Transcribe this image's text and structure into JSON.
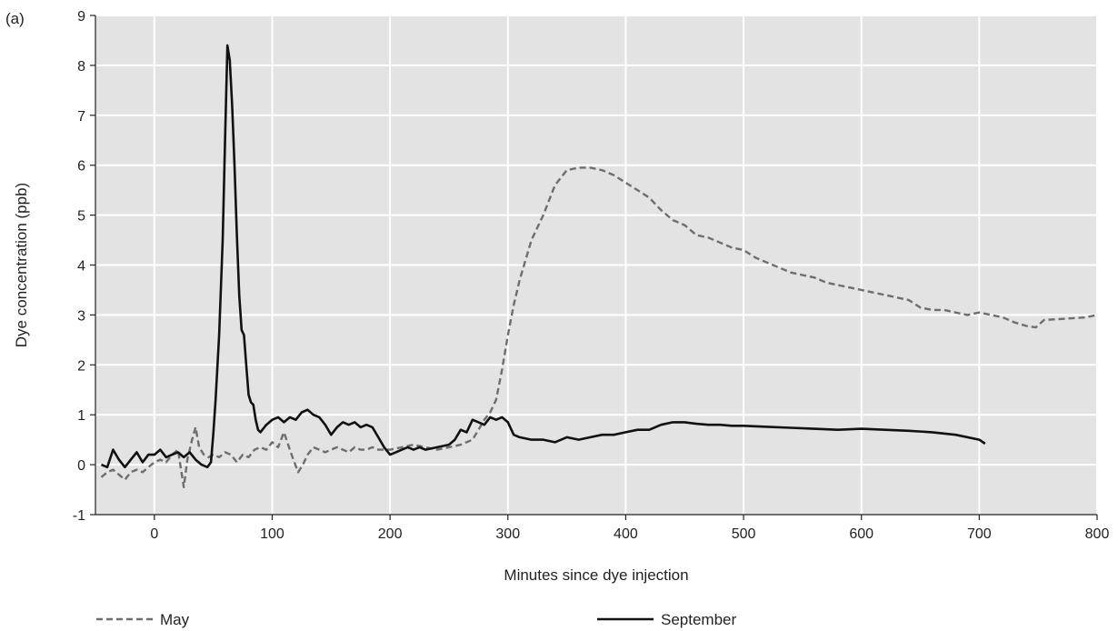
{
  "chart_data": {
    "type": "line",
    "panel_label": "(a)",
    "xlabel": "Minutes since dye injection",
    "ylabel": "Dye concentration (ppb)",
    "xlim": [
      -50,
      800
    ],
    "ylim": [
      -1,
      9
    ],
    "x_ticks": [
      0,
      100,
      200,
      300,
      400,
      500,
      600,
      700,
      800
    ],
    "y_ticks": [
      -1,
      0,
      1,
      2,
      3,
      4,
      5,
      6,
      7,
      8,
      9
    ],
    "grid": true,
    "legend_position": "bottom",
    "colors": {
      "plot_background": "#e3e3e3",
      "grid": "#ffffff",
      "may": "#6e6e6e",
      "september": "#111111"
    },
    "series": [
      {
        "name": "May",
        "style": "dashed",
        "x": [
          -45,
          -40,
          -35,
          -30,
          -25,
          -20,
          -15,
          -10,
          -5,
          0,
          5,
          10,
          15,
          20,
          25,
          28,
          32,
          35,
          38,
          42,
          46,
          50,
          55,
          60,
          65,
          70,
          75,
          80,
          85,
          90,
          95,
          100,
          105,
          110,
          115,
          118,
          122,
          126,
          130,
          135,
          140,
          145,
          150,
          155,
          160,
          165,
          170,
          175,
          180,
          185,
          190,
          200,
          210,
          220,
          230,
          240,
          250,
          260,
          270,
          275,
          280,
          285,
          290,
          295,
          300,
          305,
          310,
          315,
          320,
          330,
          340,
          350,
          360,
          370,
          380,
          390,
          400,
          410,
          420,
          430,
          440,
          450,
          460,
          470,
          480,
          490,
          500,
          510,
          520,
          530,
          540,
          550,
          560,
          570,
          580,
          590,
          600,
          610,
          620,
          630,
          640,
          650,
          660,
          670,
          680,
          690,
          700,
          710,
          720,
          730,
          740,
          748,
          755,
          770,
          790,
          800
        ],
        "y": [
          -0.25,
          -0.15,
          -0.1,
          -0.2,
          -0.3,
          -0.15,
          -0.1,
          -0.15,
          -0.05,
          0.05,
          0.1,
          0.05,
          0.2,
          0.3,
          -0.45,
          0.1,
          0.5,
          0.75,
          0.35,
          0.2,
          0.15,
          0.2,
          0.15,
          0.25,
          0.2,
          0.05,
          0.2,
          0.15,
          0.3,
          0.35,
          0.3,
          0.45,
          0.35,
          0.65,
          0.3,
          0.1,
          -0.15,
          0.0,
          0.2,
          0.35,
          0.3,
          0.25,
          0.3,
          0.35,
          0.3,
          0.25,
          0.35,
          0.3,
          0.3,
          0.35,
          0.3,
          0.3,
          0.35,
          0.4,
          0.35,
          0.3,
          0.35,
          0.4,
          0.5,
          0.7,
          0.9,
          1.05,
          1.3,
          1.9,
          2.6,
          3.2,
          3.7,
          4.1,
          4.5,
          5.0,
          5.6,
          5.9,
          5.95,
          5.95,
          5.9,
          5.8,
          5.65,
          5.5,
          5.35,
          5.1,
          4.9,
          4.8,
          4.6,
          4.55,
          4.45,
          4.35,
          4.3,
          4.15,
          4.05,
          3.95,
          3.85,
          3.8,
          3.75,
          3.65,
          3.6,
          3.55,
          3.5,
          3.45,
          3.4,
          3.35,
          3.3,
          3.15,
          3.1,
          3.1,
          3.05,
          3.0,
          3.05,
          3.0,
          2.95,
          2.85,
          2.78,
          2.75,
          2.9,
          2.92,
          2.95,
          3.0
        ]
      },
      {
        "name": "September",
        "style": "solid",
        "x": [
          -45,
          -40,
          -35,
          -30,
          -25,
          -20,
          -15,
          -10,
          -5,
          0,
          5,
          10,
          15,
          20,
          25,
          30,
          35,
          40,
          45,
          48,
          50,
          52,
          55,
          58,
          60,
          62,
          64,
          66,
          68,
          70,
          72,
          74,
          76,
          78,
          80,
          82,
          84,
          86,
          88,
          90,
          95,
          100,
          105,
          110,
          115,
          120,
          125,
          130,
          135,
          140,
          145,
          150,
          155,
          160,
          165,
          170,
          175,
          180,
          185,
          190,
          195,
          200,
          205,
          210,
          215,
          220,
          225,
          230,
          240,
          250,
          255,
          260,
          265,
          270,
          275,
          280,
          285,
          290,
          295,
          300,
          305,
          310,
          320,
          330,
          340,
          350,
          360,
          370,
          380,
          390,
          400,
          410,
          420,
          430,
          440,
          450,
          460,
          470,
          480,
          490,
          500,
          520,
          540,
          560,
          580,
          600,
          620,
          640,
          660,
          680,
          700,
          705
        ],
        "y": [
          0.0,
          -0.05,
          0.3,
          0.1,
          -0.05,
          0.1,
          0.25,
          0.05,
          0.2,
          0.2,
          0.3,
          0.15,
          0.2,
          0.25,
          0.15,
          0.25,
          0.1,
          0.0,
          -0.05,
          0.05,
          0.6,
          1.3,
          2.6,
          4.5,
          6.5,
          8.4,
          8.1,
          7.2,
          6.0,
          4.6,
          3.4,
          2.7,
          2.6,
          2.0,
          1.4,
          1.25,
          1.2,
          0.9,
          0.7,
          0.65,
          0.8,
          0.9,
          0.95,
          0.85,
          0.95,
          0.9,
          1.05,
          1.1,
          1.0,
          0.95,
          0.8,
          0.6,
          0.75,
          0.85,
          0.8,
          0.85,
          0.75,
          0.8,
          0.75,
          0.55,
          0.35,
          0.2,
          0.25,
          0.3,
          0.35,
          0.3,
          0.35,
          0.3,
          0.35,
          0.4,
          0.5,
          0.7,
          0.65,
          0.9,
          0.85,
          0.8,
          0.95,
          0.9,
          0.95,
          0.85,
          0.6,
          0.55,
          0.5,
          0.5,
          0.45,
          0.55,
          0.5,
          0.55,
          0.6,
          0.6,
          0.65,
          0.7,
          0.7,
          0.8,
          0.85,
          0.85,
          0.82,
          0.8,
          0.8,
          0.78,
          0.78,
          0.76,
          0.74,
          0.72,
          0.7,
          0.72,
          0.7,
          0.68,
          0.65,
          0.6,
          0.5,
          0.42
        ]
      }
    ]
  }
}
